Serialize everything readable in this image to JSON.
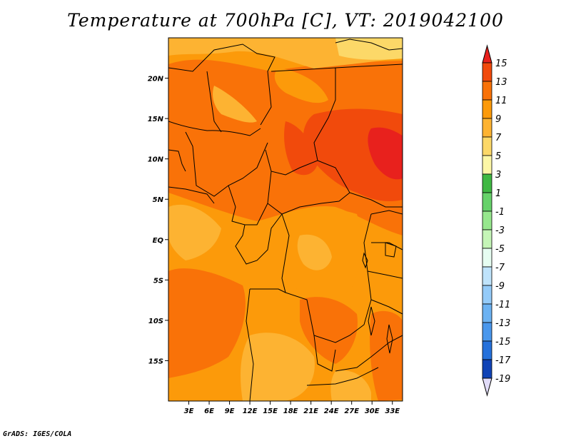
{
  "title": "Temperature at 700hPa [C], VT: 2019042100",
  "credit": "GrADS: IGES/COLA",
  "map": {
    "lon_range": [
      0,
      34.5
    ],
    "lat_range": [
      -20,
      25
    ],
    "lat_ticks": [
      {
        "value": 20,
        "label": "20N"
      },
      {
        "value": 15,
        "label": "15N"
      },
      {
        "value": 10,
        "label": "10N"
      },
      {
        "value": 5,
        "label": "5N"
      },
      {
        "value": 0,
        "label": "EQ"
      },
      {
        "value": -5,
        "label": "5S"
      },
      {
        "value": -10,
        "label": "10S"
      },
      {
        "value": -15,
        "label": "15S"
      }
    ],
    "lon_ticks": [
      {
        "value": 3,
        "label": "3E"
      },
      {
        "value": 6,
        "label": "6E"
      },
      {
        "value": 9,
        "label": "9E"
      },
      {
        "value": 12,
        "label": "12E"
      },
      {
        "value": 15,
        "label": "15E"
      },
      {
        "value": 18,
        "label": "18E"
      },
      {
        "value": 21,
        "label": "21E"
      },
      {
        "value": 24,
        "label": "24E"
      },
      {
        "value": 27,
        "label": "27E"
      },
      {
        "value": 30,
        "label": "30E"
      },
      {
        "value": 33,
        "label": "33E"
      }
    ]
  },
  "colorbar": {
    "levels": [
      "15",
      "13",
      "11",
      "9",
      "7",
      "5",
      "3",
      "1",
      "-1",
      "-3",
      "-5",
      "-7",
      "-9",
      "-11",
      "-13",
      "-15",
      "-17",
      "-19"
    ],
    "colors": [
      "#e8211d",
      "#f14a0c",
      "#f97208",
      "#fc9a0a",
      "#fdb332",
      "#fcd868",
      "#fdf7a6",
      "#3fb843",
      "#66d26a",
      "#96e78d",
      "#c5f5b7",
      "#e6fdf1",
      "#bfe3fb",
      "#94cbf9",
      "#6cb2f2",
      "#4a97ec",
      "#2571db",
      "#1043b6",
      "#0d1878"
    ],
    "over_color": "#e8211d",
    "under_color": "#e1dcf9"
  }
}
